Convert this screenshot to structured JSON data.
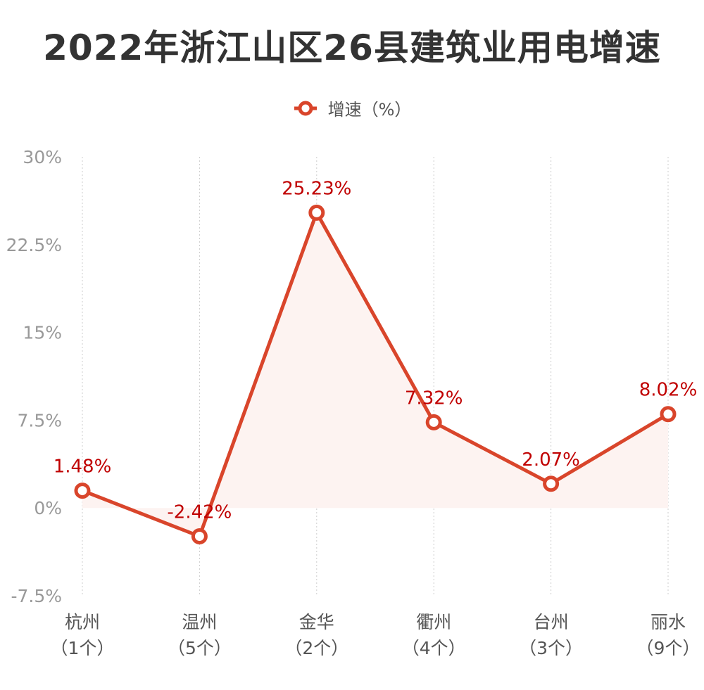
{
  "chart_data": {
    "type": "line",
    "title": "2022年浙江山区26县建筑业用电增速",
    "categories": [
      {
        "name": "杭州",
        "count": "（1个）"
      },
      {
        "name": "温州",
        "count": "（5个）"
      },
      {
        "name": "金华",
        "count": "（2个）"
      },
      {
        "name": "衢州",
        "count": "（4个）"
      },
      {
        "name": "台州",
        "count": "（3个）"
      },
      {
        "name": "丽水",
        "count": "（9个）"
      }
    ],
    "series": [
      {
        "name": "增速（%）",
        "values": [
          1.48,
          -2.42,
          25.23,
          7.32,
          2.07,
          8.02
        ],
        "labels": [
          "1.48%",
          "-2.42%",
          "25.23%",
          "7.32%",
          "2.07%",
          "8.02%"
        ],
        "color": "#d9452b",
        "label_color": "#c00000",
        "area_fill": "#fdf3f1"
      }
    ],
    "yticks": [
      -7.5,
      0,
      7.5,
      15,
      22.5,
      30
    ],
    "ytick_labels": [
      "-7.5%",
      "0%",
      "7.5%",
      "15%",
      "22.5%",
      "30%"
    ],
    "ylim": [
      -7.5,
      30
    ],
    "xlabel": "",
    "ylabel": "",
    "grid": "vertical dotted",
    "legend": "top-center"
  }
}
